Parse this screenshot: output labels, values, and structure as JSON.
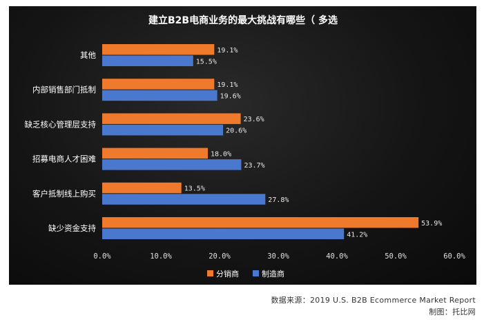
{
  "chart_data": {
    "type": "bar",
    "orientation": "horizontal",
    "title": "建立B2B电商业务的最大挑战有哪些（ 多选）",
    "title_display": "建立B2B电商业务的最大挑战有哪些（ 多选",
    "categories": [
      "其他",
      "内部销售部门抵制",
      "缺乏核心管理层支持",
      "招募电商人才困难",
      "客户抵制线上购买",
      "缺少资金支持"
    ],
    "series": [
      {
        "name": "分销商",
        "color": "#f07a2b",
        "values": [
          19.1,
          19.1,
          23.6,
          18.0,
          13.5,
          53.9
        ],
        "labels": [
          "19.1%",
          "19.1%",
          "23.6%",
          "18.0%",
          "13.5%",
          "53.9%"
        ]
      },
      {
        "name": "制造商",
        "color": "#4a78cf",
        "values": [
          15.5,
          19.6,
          20.6,
          23.7,
          27.8,
          41.2
        ],
        "labels": [
          "15.5%",
          "19.6%",
          "20.6%",
          "23.7%",
          "27.8%",
          "41.2%"
        ]
      }
    ],
    "xlim": [
      0,
      60
    ],
    "xticks": [
      "0.0%",
      "10.0%",
      "20.0%",
      "30.0%",
      "40.0%",
      "50.0%",
      "60.0%"
    ],
    "grid": false,
    "legend_position": "bottom-center"
  },
  "footer": {
    "source": "数据来源：2019 U.S. B2B Ecommerce Market Report",
    "maker": "制图：托比网"
  }
}
